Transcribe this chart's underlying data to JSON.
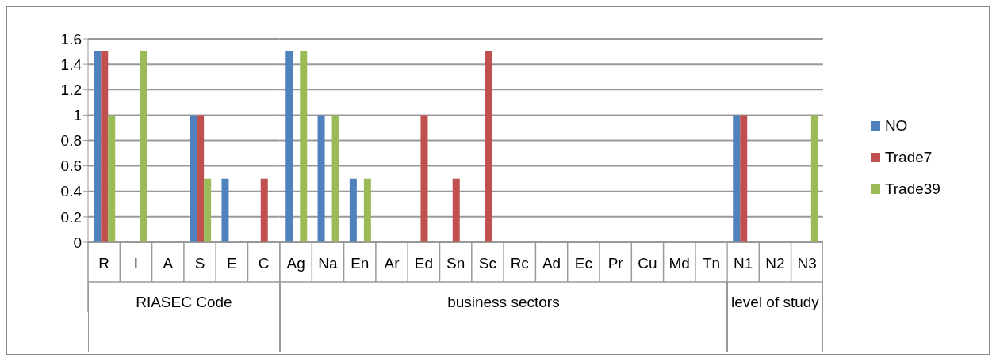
{
  "chart_data": [
    {
      "type": "bar",
      "xlabel": "RIASEC Code",
      "categories": [
        "R",
        "I",
        "A",
        "S",
        "E",
        "C"
      ],
      "series": [
        {
          "color": "#4f81bd",
          "values": [
            1.5,
            0,
            0,
            1,
            0.5,
            0
          ]
        },
        {
          "color": "#c0504d",
          "values": [
            1.5,
            0,
            0,
            1,
            0,
            0.5
          ]
        },
        {
          "color": "#9bbb59",
          "values": [
            1,
            1.5,
            0,
            0.5,
            0,
            0
          ]
        }
      ],
      "ylim": [
        0,
        1.6
      ],
      "yticks": [
        0,
        0.2,
        0.4,
        0.6,
        0.8,
        1,
        1.2,
        1.4,
        1.6
      ],
      "grid": "y"
    },
    {
      "type": "bar",
      "xlabel": "business sectors",
      "categories": [
        "Ag",
        "Na",
        "En",
        "Ar",
        "Ed",
        "Sn",
        "Sc",
        "Rc",
        "Ad",
        "Ec",
        "Pr",
        "Cu",
        "Md",
        "Tn"
      ],
      "series": [
        {
          "color": "#4f81bd",
          "values": [
            1.5,
            1,
            0.5,
            0,
            0,
            0,
            0,
            0,
            0,
            0,
            0,
            0,
            0,
            0
          ]
        },
        {
          "color": "#c0504d",
          "values": [
            0,
            0,
            0,
            0,
            1,
            0.5,
            1.5,
            0,
            0,
            0,
            0,
            0,
            0,
            0
          ]
        },
        {
          "color": "#9bbb59",
          "values": [
            1.5,
            1,
            0.5,
            0,
            0,
            0,
            0,
            0,
            0,
            0,
            0,
            0,
            0,
            0
          ]
        }
      ],
      "ylim": [
        0,
        1.6
      ],
      "yticks": [
        0,
        0.2,
        0.4,
        0.6,
        0.8,
        1,
        1.2,
        1.4,
        1.6
      ],
      "grid": "y",
      "tick_labels": "x"
    },
    {
      "type": "bar",
      "xlabel": "level of study",
      "categories": [
        "N1",
        "N2",
        "N3"
      ],
      "series": [
        {
          "name": "NO",
          "color": "#4f81bd",
          "values": [
            1,
            0,
            0
          ]
        },
        {
          "name": "Trade7",
          "color": "#c0504d",
          "values": [
            1,
            0,
            0
          ]
        },
        {
          "name": "Trade39",
          "color": "#9bbb59",
          "values": [
            0,
            0,
            1
          ]
        }
      ],
      "ylim": [
        0,
        1.6
      ],
      "yticks": [
        0,
        0.2,
        0.4,
        0.6,
        0.8,
        1,
        1.2,
        1.4,
        1.6
      ],
      "grid": "y",
      "tick_labels": "x",
      "legend": "right"
    }
  ]
}
